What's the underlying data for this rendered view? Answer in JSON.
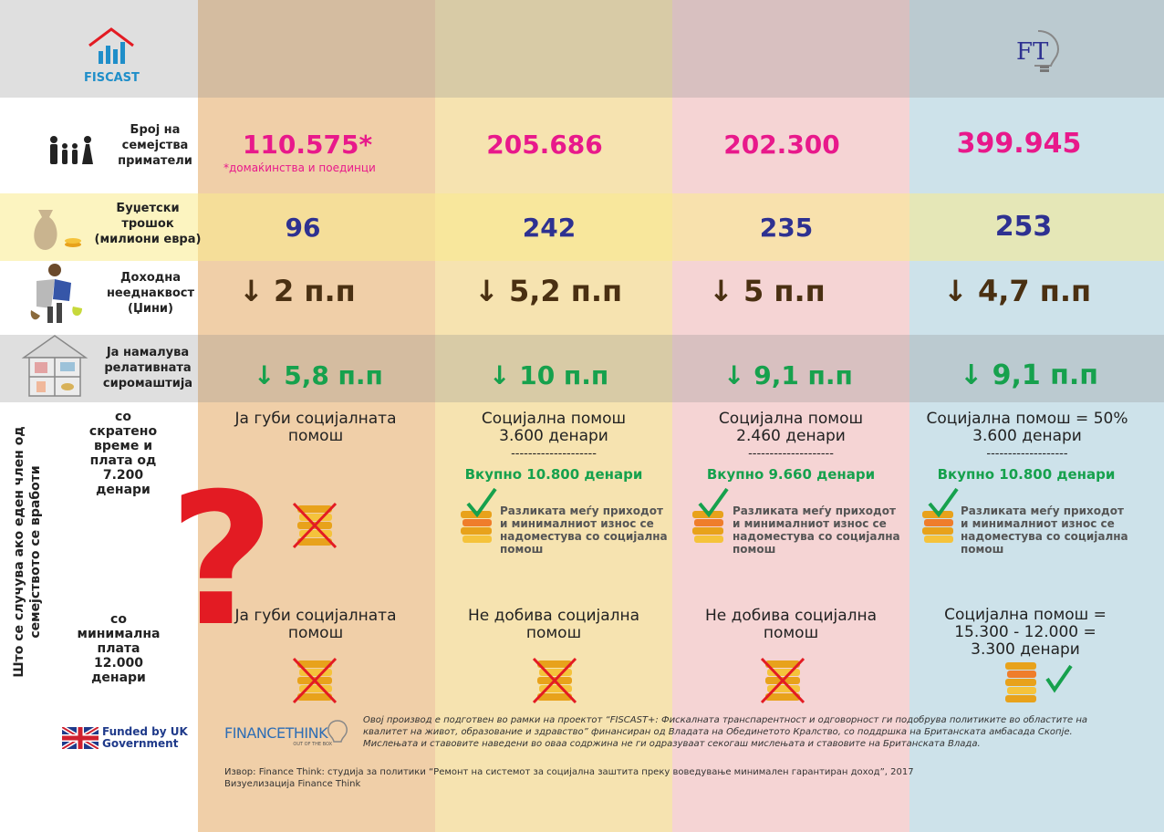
{
  "colors": {
    "col1": "#f0cfa8",
    "col2": "#f6e3b0",
    "col3": "#f5d4d4",
    "col4": "#cde2ea",
    "pink": "#e8198b",
    "navy": "#2e3191",
    "brown": "#4a3012",
    "green": "#16a14d",
    "red": "#e31b23"
  },
  "header": {
    "fiscast_logo_text": "FISCAST",
    "ft_logo_text": "FT"
  },
  "rows": {
    "families": {
      "label": "Број на семејства приматели",
      "icon": "family-icon",
      "values": [
        "110.575*",
        "205.686",
        "202.300",
        "399.945"
      ],
      "note": "*домаќинства и поединци"
    },
    "budget": {
      "label": "Буџетски трошок (милиони евра)",
      "icon": "money-bag-icon",
      "values": [
        "96",
        "242",
        "235",
        "253"
      ]
    },
    "inequality": {
      "label": "Доходна нееднаквост (Џини)",
      "icon": "man-with-bag-icon",
      "values": [
        "↓ 2 п.п",
        "↓ 5,2 п.п",
        "↓ 5 п.п",
        "↓ 4,7 п.п"
      ]
    },
    "poverty": {
      "label": "Ја намалува релативната сиромаштија",
      "icon": "house-icon",
      "values": [
        "↓ 5,8 п.п",
        "↓ 10 п.п",
        "↓ 9,1 п.п",
        "↓ 9,1 п.п"
      ]
    }
  },
  "scenario": {
    "side_label": "Што се случува ако еден член од семејството се вработи",
    "parttime": {
      "label": "со скратено време и плата од 7.200 денари",
      "cols": [
        {
          "title": "Ја губи социјалната помош",
          "dash": "",
          "total": "",
          "note": "",
          "icon": "crossed-coins-icon"
        },
        {
          "title": "Социјална помош 3.600 денари",
          "dash": "--------------------",
          "total": "Вкупно 10.800 денари",
          "note": "Разликата меѓу приходот и минималниот износ се надоместува со социјална помош",
          "icon": "coins-check-icon"
        },
        {
          "title": "Социјална помош 2.460 денари",
          "dash": "--------------------",
          "total": "Вкупно 9.660 денари",
          "note": "Разликата меѓу приходот и минималниот износ се надоместува со социјална помош",
          "icon": "coins-check-icon"
        },
        {
          "title": "Социјална помош = 50% 3.600 денари",
          "dash": "-------------------",
          "total": "Вкупно 10.800 денари",
          "note": "Разликата меѓу приходот и минималниот износ се надоместува со социјална помош",
          "icon": "coins-check-icon"
        }
      ]
    },
    "minwage": {
      "label": "со минимална плата 12.000 денари",
      "cols": [
        {
          "title": "Ја губи социјалната помош",
          "icon": "crossed-coins-icon"
        },
        {
          "title": "Не добива социјална помош",
          "icon": "crossed-coins-icon"
        },
        {
          "title": "Не добива социјална помош",
          "icon": "crossed-coins-icon"
        },
        {
          "title": "Социјална помош = 15.300 - 12.000 = 3.300 денари",
          "icon": "coins-check-icon"
        }
      ]
    }
  },
  "footer": {
    "funded": "Funded by UK Government",
    "finance_think_logo": "FINANCETHINK",
    "finance_think_tagline": "OUT OF THE BOX",
    "disclaimer": "Овој производ е подготвен во рамки на проектот “FISCAST+: Фискалната транспарентност и одговорност ги подобрува политиките во областите на квалитет на живот, образование и здравство” финансиран од Владата на Обединетото Кралство, со поддршка на Британската амбасада Скопје.  Мислењата и ставовите наведени во оваа содржина не ги одразуваат секогаш мислењата и ставовите на Британската Влада.",
    "source": "Извор: Finance Think: студија за политики “Ремонт на системот за социјална заштита преку воведување минимален гарантиран доход”, 2017",
    "visualization": "Визуелизација Finance Think"
  }
}
